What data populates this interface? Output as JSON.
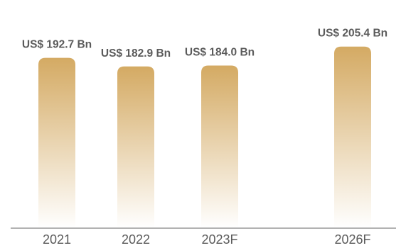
{
  "chart_data": {
    "type": "bar",
    "title": "",
    "xlabel": "",
    "ylabel": "",
    "categories": [
      "2021",
      "2022",
      "2023F",
      "2026F"
    ],
    "values": [
      192.7,
      182.9,
      184.0,
      205.4
    ],
    "data_labels": [
      "US$ 192.7 Bn",
      "US$ 182.9 Bn",
      "US$ 184.0 Bn",
      "US$ 205.4 Bn"
    ],
    "ylim": [
      0,
      210
    ],
    "grid": false,
    "legend": "none",
    "colors": {
      "bar_top": "#d4aa63",
      "bar_bottom": "#ffffff",
      "label": "#5b5b5b",
      "axis": "#666666"
    }
  }
}
